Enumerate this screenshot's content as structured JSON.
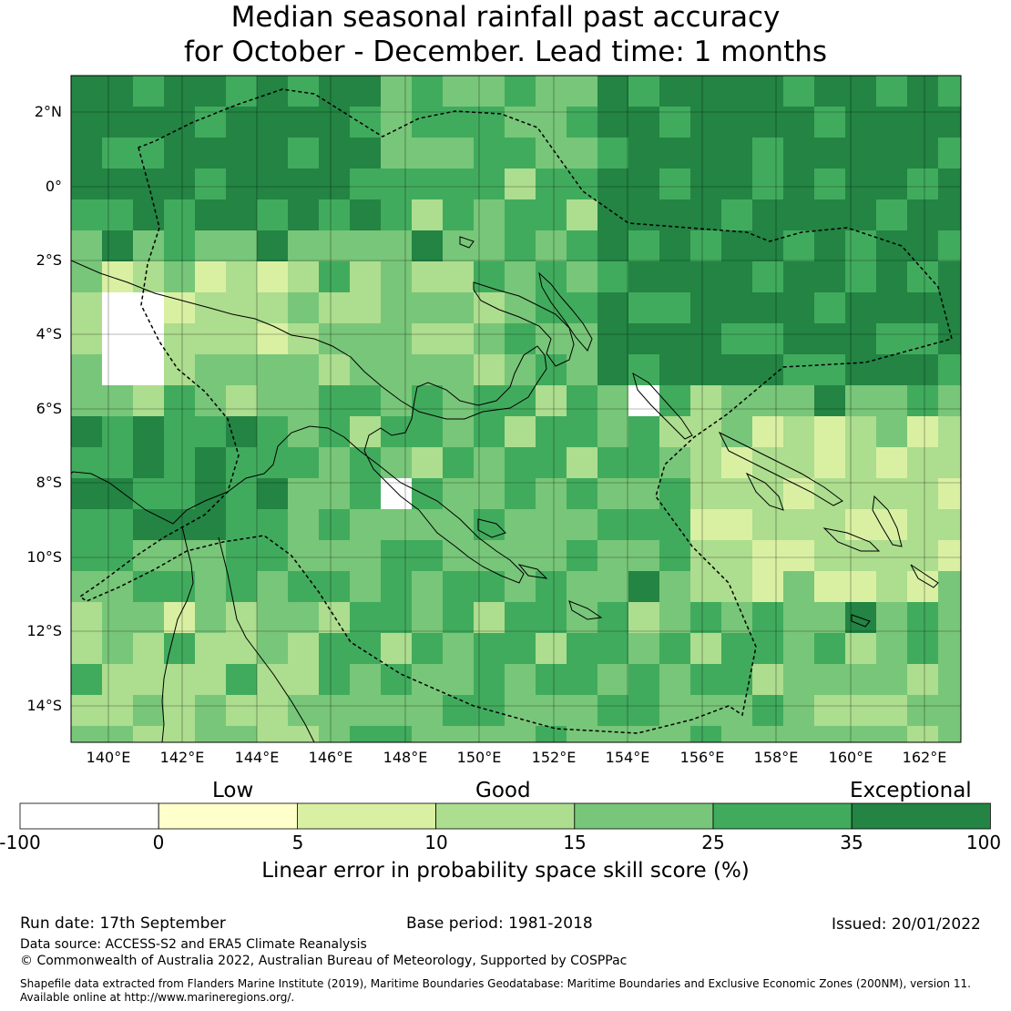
{
  "title": {
    "line1": "Median seasonal rainfall past accuracy",
    "line2": "for October - December. Lead time: 1 months"
  },
  "map": {
    "lat_labels": [
      "2°N",
      "0°",
      "2°S",
      "4°S",
      "6°S",
      "8°S",
      "10°S",
      "12°S",
      "14°S"
    ],
    "lon_labels": [
      "140°E",
      "142°E",
      "144°E",
      "146°E",
      "148°E",
      "150°E",
      "152°E",
      "154°E",
      "156°E",
      "158°E",
      "160°E",
      "162°E"
    ],
    "layers": [
      "skill-grid",
      "coastlines",
      "eez-boundary",
      "graticule"
    ]
  },
  "legend": {
    "categories": [
      "Low",
      "Good",
      "Exceptional"
    ],
    "ticks": [
      "-100",
      "0",
      "5",
      "10",
      "15",
      "25",
      "35",
      "100"
    ],
    "colors": [
      "#ffffff",
      "#ffffcc",
      "#d9f0a3",
      "#addd8e",
      "#78c679",
      "#41ab5d",
      "#238443"
    ],
    "title": "Linear error in probability space skill score (%)"
  },
  "footer": {
    "run_date": "Run date: 17th September",
    "base_period": "Base period: 1981-2018",
    "issued": "Issued: 20/01/2022",
    "data_source": "Data source: ACCESS-S2 and ERA5 Climate Reanalysis",
    "copyright": "© Commonwealth of Australia 2022, Australian Bureau of Meteorology, Supported by COSPPac",
    "shapefile_line1": "Shapefile data extracted from Flanders Marine Institute (2019), Maritime Boundaries Geodatabase: Maritime Boundaries and Exclusive Economic Zones (200NM), version 11.",
    "shapefile_line2": "Available online at http://www.marineregions.org/."
  }
}
